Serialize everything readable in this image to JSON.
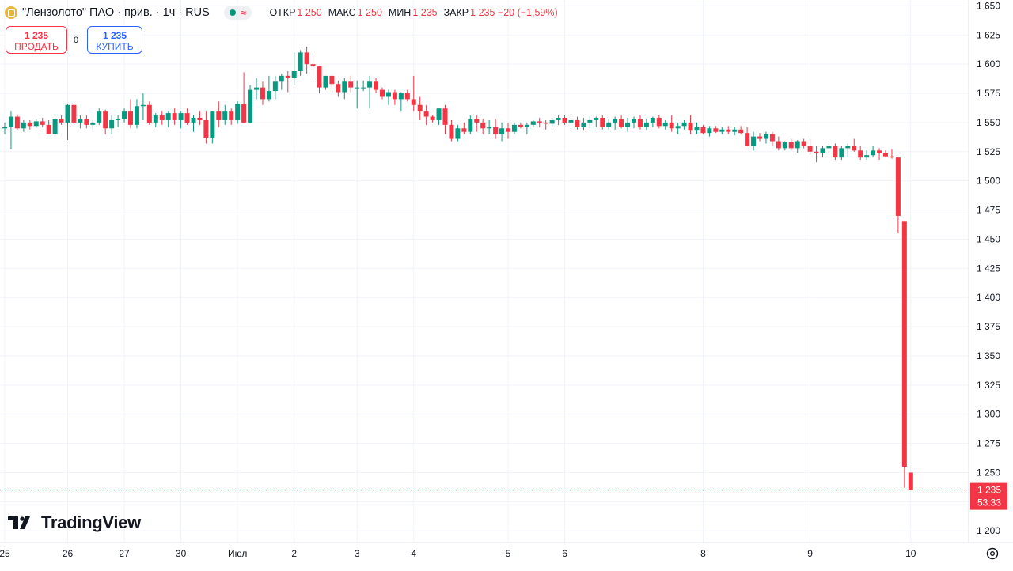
{
  "header": {
    "title": "\"Лензолото\" ПАО · прив. · 1ч · RUS",
    "ohlc": [
      {
        "label": "ОТКР",
        "value": "1 250"
      },
      {
        "label": "МАКС",
        "value": "1 250"
      },
      {
        "label": "МИН",
        "value": "1 235"
      },
      {
        "label": "ЗАКР",
        "value": "1 235 −20 (−1,59%)"
      }
    ]
  },
  "trade": {
    "sell_price": "1 235",
    "sell_label": "ПРОДАТЬ",
    "spread": "0",
    "buy_price": "1 235",
    "buy_label": "КУПИТЬ"
  },
  "price_tag": {
    "price": "1 235",
    "countdown": "53:33"
  },
  "brand": "TradingView",
  "colors": {
    "up": "#089981",
    "down": "#f23645",
    "grid": "#f0f3fa",
    "axis_text": "#131722"
  },
  "chart_data": {
    "type": "candlestick",
    "ylim": [
      1190,
      1655
    ],
    "y_ticks": [
      "1 650",
      "1 625",
      "1 600",
      "1 575",
      "1 550",
      "1 525",
      "1 500",
      "1 475",
      "1 450",
      "1 425",
      "1 400",
      "1 375",
      "1 350",
      "1 325",
      "1 300",
      "1 275",
      "1 250",
      "1 225",
      "1 200"
    ],
    "x_ticks": [
      {
        "label": "25",
        "index": 0
      },
      {
        "label": "26",
        "index": 10
      },
      {
        "label": "27",
        "index": 19
      },
      {
        "label": "30",
        "index": 28
      },
      {
        "label": "Июл",
        "index": 37
      },
      {
        "label": "2",
        "index": 46
      },
      {
        "label": "3",
        "index": 56
      },
      {
        "label": "4",
        "index": 65
      },
      {
        "label": "5",
        "index": 80
      },
      {
        "label": "6",
        "index": 89
      },
      {
        "label": "8",
        "index": 111
      },
      {
        "label": "9",
        "index": 128
      },
      {
        "label": "10",
        "index": 144
      }
    ],
    "last_price": 1235,
    "candles": [
      [
        1545,
        1550,
        1540,
        1546
      ],
      [
        1546,
        1560,
        1527,
        1555
      ],
      [
        1555,
        1557,
        1544,
        1545
      ],
      [
        1545,
        1552,
        1542,
        1550
      ],
      [
        1550,
        1552,
        1544,
        1547
      ],
      [
        1547,
        1553,
        1545,
        1551
      ],
      [
        1551,
        1554,
        1546,
        1548
      ],
      [
        1548,
        1552,
        1540,
        1540
      ],
      [
        1540,
        1556,
        1538,
        1553
      ],
      [
        1553,
        1556,
        1548,
        1550
      ],
      [
        1550,
        1566,
        1535,
        1565
      ],
      [
        1565,
        1566,
        1548,
        1550
      ],
      [
        1550,
        1556,
        1545,
        1553
      ],
      [
        1553,
        1556,
        1545,
        1548
      ],
      [
        1548,
        1552,
        1544,
        1550
      ],
      [
        1550,
        1562,
        1548,
        1560
      ],
      [
        1560,
        1561,
        1540,
        1545
      ],
      [
        1545,
        1556,
        1540,
        1552
      ],
      [
        1552,
        1556,
        1546,
        1553
      ],
      [
        1553,
        1562,
        1550,
        1560
      ],
      [
        1560,
        1570,
        1545,
        1548
      ],
      [
        1548,
        1570,
        1545,
        1564
      ],
      [
        1564,
        1575,
        1552,
        1565
      ],
      [
        1565,
        1568,
        1548,
        1550
      ],
      [
        1550,
        1558,
        1546,
        1556
      ],
      [
        1556,
        1560,
        1548,
        1552
      ],
      [
        1552,
        1560,
        1546,
        1558
      ],
      [
        1558,
        1562,
        1548,
        1552
      ],
      [
        1552,
        1560,
        1545,
        1558
      ],
      [
        1558,
        1562,
        1548,
        1550
      ],
      [
        1550,
        1556,
        1542,
        1554
      ],
      [
        1554,
        1560,
        1548,
        1552
      ],
      [
        1552,
        1560,
        1532,
        1537
      ],
      [
        1537,
        1560,
        1532,
        1560
      ],
      [
        1560,
        1568,
        1546,
        1552
      ],
      [
        1552,
        1565,
        1548,
        1560
      ],
      [
        1560,
        1562,
        1548,
        1552
      ],
      [
        1552,
        1568,
        1549,
        1566
      ],
      [
        1566,
        1593,
        1550,
        1550
      ],
      [
        1550,
        1582,
        1550,
        1578
      ],
      [
        1578,
        1588,
        1570,
        1580
      ],
      [
        1580,
        1585,
        1565,
        1570
      ],
      [
        1570,
        1590,
        1568,
        1577
      ],
      [
        1577,
        1590,
        1570,
        1585
      ],
      [
        1585,
        1592,
        1578,
        1590
      ],
      [
        1590,
        1594,
        1576,
        1588
      ],
      [
        1588,
        1610,
        1582,
        1594
      ],
      [
        1594,
        1612,
        1590,
        1610
      ],
      [
        1610,
        1615,
        1592,
        1600
      ],
      [
        1600,
        1608,
        1588,
        1598
      ],
      [
        1598,
        1598,
        1575,
        1580
      ],
      [
        1580,
        1590,
        1578,
        1590
      ],
      [
        1590,
        1590,
        1578,
        1583
      ],
      [
        1583,
        1586,
        1572,
        1576
      ],
      [
        1576,
        1588,
        1570,
        1585
      ],
      [
        1585,
        1590,
        1576,
        1580
      ],
      [
        1580,
        1586,
        1562,
        1580
      ],
      [
        1580,
        1586,
        1577,
        1580
      ],
      [
        1580,
        1590,
        1562,
        1585
      ],
      [
        1585,
        1588,
        1575,
        1578
      ],
      [
        1578,
        1580,
        1570,
        1572
      ],
      [
        1572,
        1578,
        1565,
        1576
      ],
      [
        1576,
        1578,
        1565,
        1570
      ],
      [
        1570,
        1576,
        1560,
        1575
      ],
      [
        1575,
        1578,
        1568,
        1570
      ],
      [
        1570,
        1590,
        1560,
        1565
      ],
      [
        1565,
        1572,
        1552,
        1560
      ],
      [
        1560,
        1565,
        1548,
        1555
      ],
      [
        1555,
        1556,
        1550,
        1552
      ],
      [
        1552,
        1562,
        1548,
        1562
      ],
      [
        1562,
        1565,
        1540,
        1548
      ],
      [
        1548,
        1552,
        1534,
        1536
      ],
      [
        1536,
        1548,
        1534,
        1545
      ],
      [
        1545,
        1550,
        1540,
        1542
      ],
      [
        1542,
        1556,
        1540,
        1553
      ],
      [
        1553,
        1556,
        1542,
        1550
      ],
      [
        1550,
        1553,
        1540,
        1545
      ],
      [
        1545,
        1552,
        1540,
        1546
      ],
      [
        1546,
        1553,
        1536,
        1540
      ],
      [
        1540,
        1550,
        1534,
        1545
      ],
      [
        1545,
        1550,
        1536,
        1542
      ],
      [
        1542,
        1550,
        1540,
        1548
      ],
      [
        1548,
        1550,
        1545,
        1546
      ],
      [
        1546,
        1550,
        1540,
        1548
      ],
      [
        1548,
        1552,
        1546,
        1551
      ],
      [
        1551,
        1554,
        1546,
        1550
      ],
      [
        1550,
        1552,
        1544,
        1549
      ],
      [
        1549,
        1554,
        1546,
        1552
      ],
      [
        1552,
        1556,
        1548,
        1554
      ],
      [
        1554,
        1556,
        1548,
        1550
      ],
      [
        1550,
        1554,
        1546,
        1552
      ],
      [
        1552,
        1555,
        1544,
        1546
      ],
      [
        1546,
        1554,
        1543,
        1550
      ],
      [
        1550,
        1555,
        1545,
        1552
      ],
      [
        1552,
        1555,
        1546,
        1554
      ],
      [
        1554,
        1556,
        1544,
        1546
      ],
      [
        1546,
        1553,
        1543,
        1550
      ],
      [
        1550,
        1555,
        1544,
        1553
      ],
      [
        1553,
        1556,
        1545,
        1546
      ],
      [
        1546,
        1554,
        1542,
        1550
      ],
      [
        1550,
        1555,
        1545,
        1553
      ],
      [
        1553,
        1556,
        1544,
        1546
      ],
      [
        1546,
        1553,
        1543,
        1550
      ],
      [
        1550,
        1555,
        1546,
        1554
      ],
      [
        1554,
        1556,
        1545,
        1547
      ],
      [
        1547,
        1552,
        1544,
        1550
      ],
      [
        1550,
        1556,
        1542,
        1545
      ],
      [
        1545,
        1550,
        1540,
        1547
      ],
      [
        1547,
        1552,
        1544,
        1550
      ],
      [
        1550,
        1556,
        1540,
        1543
      ],
      [
        1543,
        1550,
        1540,
        1546
      ],
      [
        1546,
        1548,
        1540,
        1541
      ],
      [
        1541,
        1547,
        1538,
        1545
      ],
      [
        1545,
        1547,
        1541,
        1542
      ],
      [
        1542,
        1546,
        1540,
        1544
      ],
      [
        1544,
        1547,
        1540,
        1542
      ],
      [
        1542,
        1546,
        1539,
        1544
      ],
      [
        1544,
        1547,
        1540,
        1541
      ],
      [
        1541,
        1546,
        1530,
        1530
      ],
      [
        1530,
        1542,
        1526,
        1538
      ],
      [
        1538,
        1541,
        1534,
        1536
      ],
      [
        1536,
        1542,
        1532,
        1540
      ],
      [
        1540,
        1542,
        1530,
        1534
      ],
      [
        1534,
        1538,
        1526,
        1528
      ],
      [
        1528,
        1534,
        1526,
        1533
      ],
      [
        1533,
        1536,
        1526,
        1528
      ],
      [
        1528,
        1535,
        1524,
        1534
      ],
      [
        1534,
        1536,
        1528,
        1530
      ],
      [
        1530,
        1536,
        1522,
        1525
      ],
      [
        1525,
        1530,
        1516,
        1524
      ],
      [
        1524,
        1530,
        1520,
        1528
      ],
      [
        1528,
        1532,
        1524,
        1530
      ],
      [
        1530,
        1532,
        1518,
        1520
      ],
      [
        1520,
        1530,
        1518,
        1528
      ],
      [
        1528,
        1532,
        1520,
        1530
      ],
      [
        1530,
        1536,
        1525,
        1526
      ],
      [
        1526,
        1530,
        1518,
        1520
      ],
      [
        1520,
        1526,
        1518,
        1522
      ],
      [
        1522,
        1530,
        1520,
        1526
      ],
      [
        1526,
        1528,
        1518,
        1524
      ],
      [
        1524,
        1526,
        1520,
        1521
      ],
      [
        1521,
        1527,
        1519,
        1520
      ],
      [
        1520,
        1520,
        1455,
        1470
      ],
      [
        1465,
        1465,
        1237,
        1255
      ],
      [
        1250,
        1250,
        1235,
        1235
      ]
    ]
  }
}
